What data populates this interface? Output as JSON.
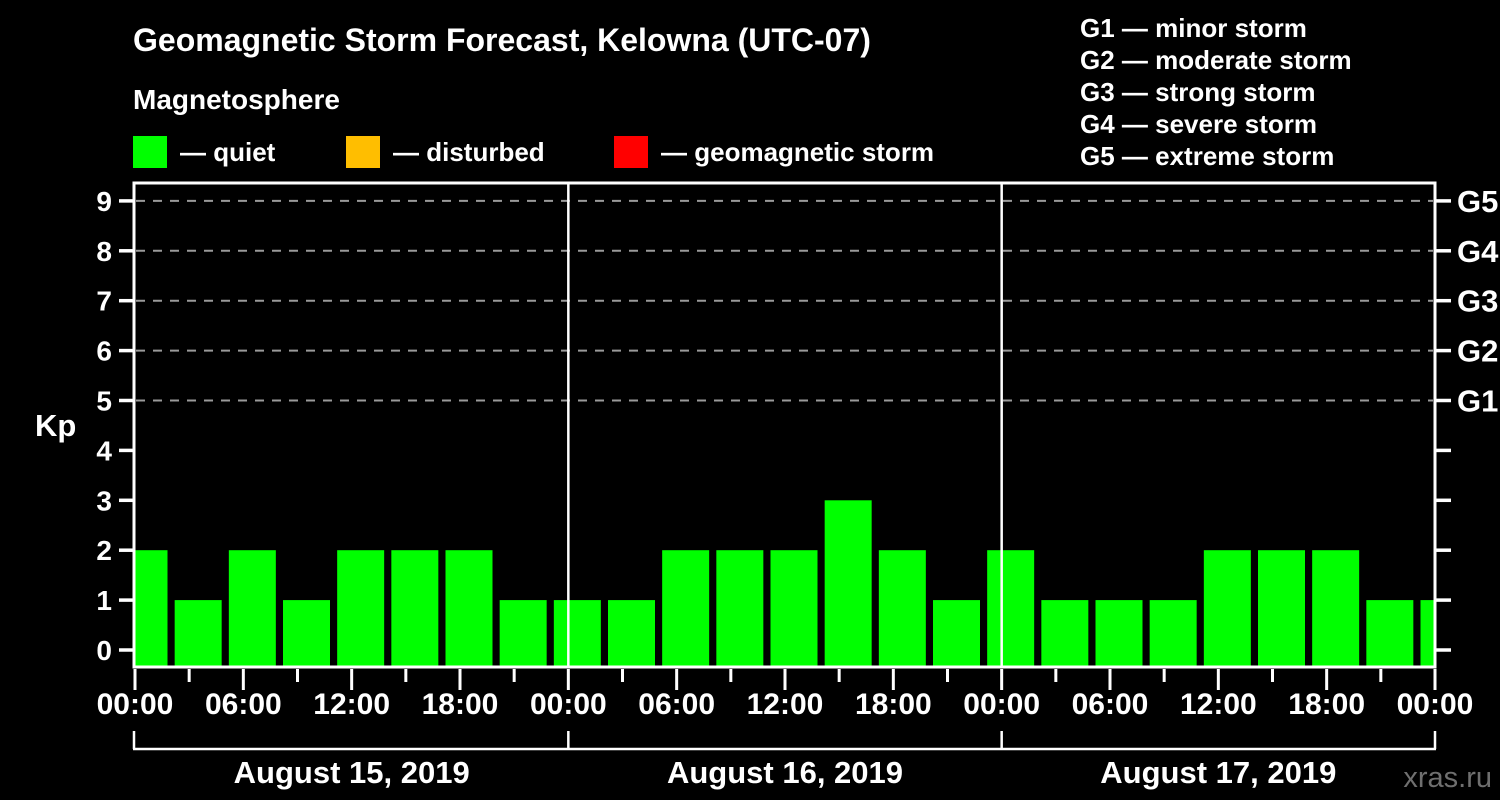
{
  "header": {
    "title": "Geomagnetic Storm Forecast, Kelowna (UTC-07)",
    "subtitle": "Magnetosphere",
    "kp_legend": [
      {
        "label": "— quiet",
        "color": "#00ff00"
      },
      {
        "label": "— disturbed",
        "color": "#ffbe00"
      },
      {
        "label": "— geomagnetic storm",
        "color": "#ff0000"
      }
    ],
    "g_legend": [
      "G1 — minor storm",
      "G2 — moderate storm",
      "G3 — strong storm",
      "G4 — severe storm",
      "G5 — extreme storm"
    ]
  },
  "watermark": "xras.ru",
  "chart_data": {
    "type": "bar",
    "title": "Geomagnetic Storm Forecast, Kelowna (UTC-07)",
    "ylabel": "Kp",
    "ylim": [
      0,
      9
    ],
    "y_ticks": [
      0,
      1,
      2,
      3,
      4,
      5,
      6,
      7,
      8,
      9
    ],
    "grid_levels_kp": [
      5,
      6,
      7,
      8,
      9
    ],
    "grid_style": "dashed",
    "right_axis": [
      {
        "label": "G1",
        "kp": 5
      },
      {
        "label": "G2",
        "kp": 6
      },
      {
        "label": "G3",
        "kp": 7
      },
      {
        "label": "G4",
        "kp": 8
      },
      {
        "label": "G5",
        "kp": 9
      }
    ],
    "x_interval_hours": 3,
    "x_total_hours": 72,
    "x_tick_labels": [
      "00:00",
      "06:00",
      "12:00",
      "18:00",
      "00:00",
      "06:00",
      "12:00",
      "18:00",
      "00:00",
      "06:00",
      "12:00",
      "18:00",
      "00:00"
    ],
    "days": [
      {
        "date": "August 15, 2019",
        "values": [
          2,
          1,
          2,
          1,
          2,
          2,
          2,
          1
        ]
      },
      {
        "date": "August 16, 2019",
        "values": [
          1,
          1,
          2,
          2,
          2,
          3,
          2,
          1
        ]
      },
      {
        "date": "August 17, 2019",
        "values": [
          2,
          1,
          1,
          1,
          2,
          2,
          2,
          1
        ]
      }
    ],
    "trailing_bar_kp": 1,
    "colors": {
      "bar": "#00ff00",
      "grid": "#9a9a9a",
      "axis": "#ffffff",
      "quiet": "#00ff00",
      "disturbed": "#ffbe00",
      "storm": "#ff0000"
    }
  }
}
